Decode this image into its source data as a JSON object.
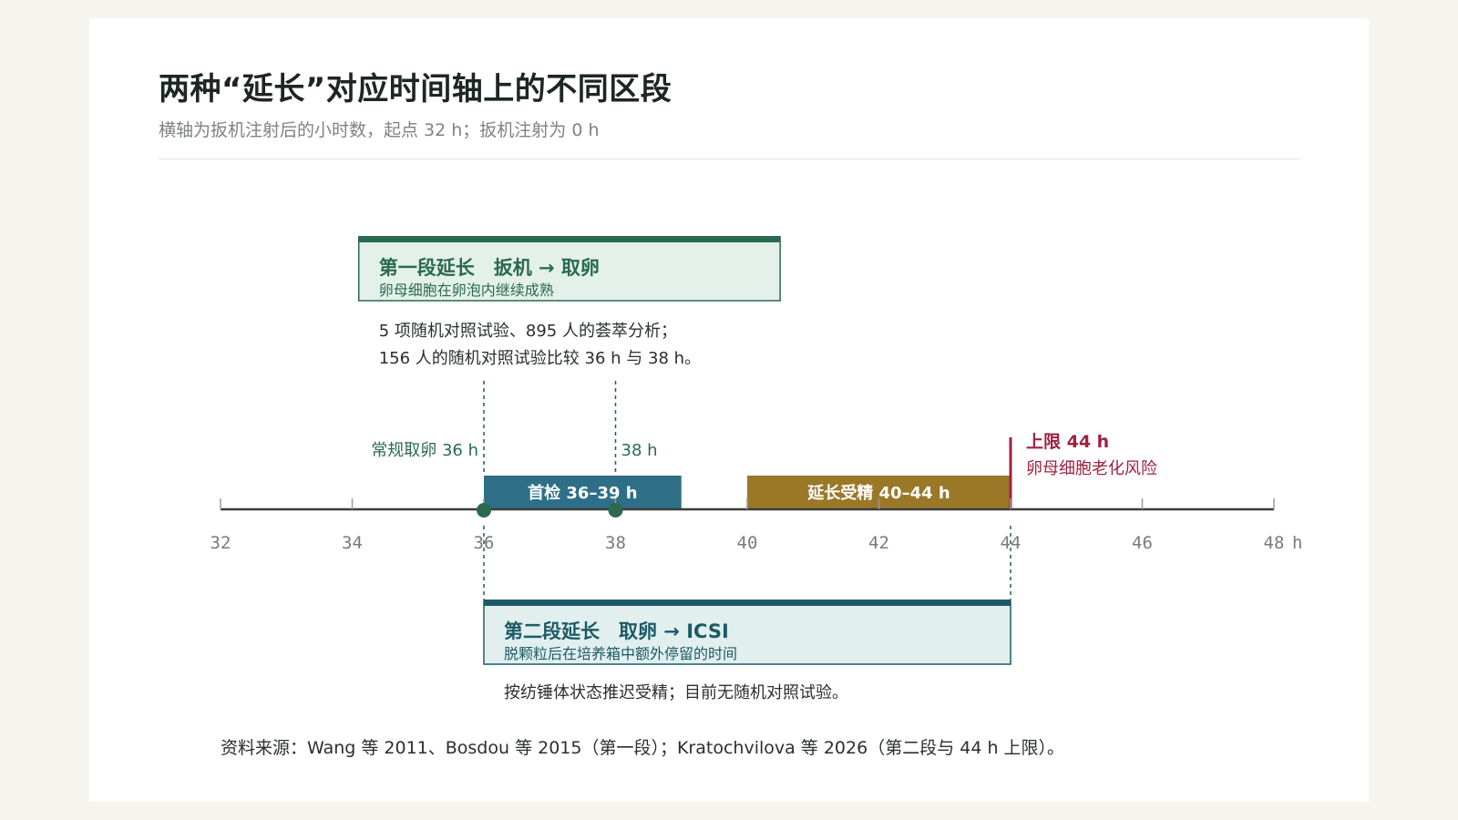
{
  "title": "两种“延长”对应时间轴上的不同区段",
  "subtitle": "横轴为扳机注射后的小时数，起点 32 h；扳机注射为 0 h",
  "colors": {
    "green": "#2a6a4f",
    "green_bg": "#e4f1ea",
    "teal": "#1c5a66",
    "teal_bg": "#e2efef",
    "blue_bar": "#2e6f87",
    "gold_bar": "#9a7828",
    "red": "#a0213f",
    "axis": "#3a3a3a",
    "tick_text": "#7a7a7a"
  },
  "axis": {
    "min": 32,
    "max": 48,
    "ticks": [
      32,
      34,
      36,
      38,
      40,
      42,
      44,
      46,
      48
    ],
    "unit": "h"
  },
  "stage1": {
    "title": "第一段延长　扳机 → 取卵",
    "subtitle": "卵母细胞在卵泡内继续成熟",
    "start": 34.1,
    "end": 40.5,
    "note_lines": [
      "5 项随机对照试验、895 人的荟萃分析；",
      "156 人的随机对照试验比较 36 h 与 38 h。"
    ]
  },
  "markers": [
    {
      "value": 36,
      "label": "常规取卵 36 h",
      "label_side": "left"
    },
    {
      "value": 38,
      "label": "38 h",
      "label_side": "right"
    }
  ],
  "bars": [
    {
      "label": "首检 36–39 h",
      "start": 36,
      "end": 39,
      "color": "#2e6f87"
    },
    {
      "label": "延长受精 40–44 h",
      "start": 40,
      "end": 44,
      "color": "#9a7828"
    }
  ],
  "limit": {
    "value": 44,
    "label": "上限 44 h",
    "sublabel": "卵母细胞老化风险"
  },
  "stage2": {
    "title": "第二段延长　取卵 → ICSI",
    "subtitle": "脱颗粒后在培养箱中额外停留的时间",
    "start": 36,
    "end": 44,
    "note": "按纺锤体状态推迟受精；目前无随机对照试验。"
  },
  "source": "资料来源：Wang 等 2011、Bosdou 等 2015（第一段）；Kratochvilova 等 2026（第二段与 44 h 上限）。"
}
